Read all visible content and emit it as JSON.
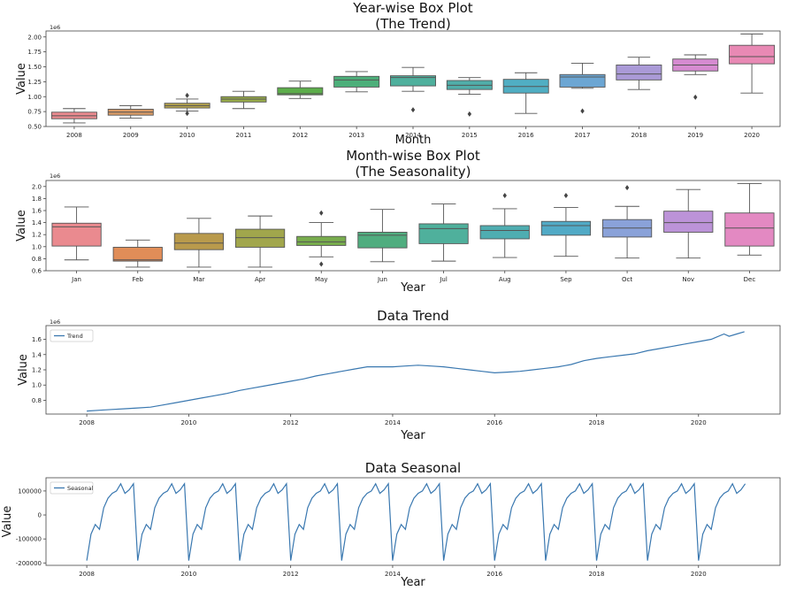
{
  "chart_data": [
    {
      "type": "box",
      "title": "Year-wise Box Plot",
      "subtitle": "(The Trend)",
      "xlabel": "Month",
      "ylabel": "Value",
      "offset_label": "1e6",
      "ylim": [
        0.5,
        2.1
      ],
      "yticks": [
        "0.50",
        "0.75",
        "1.00",
        "1.25",
        "1.50",
        "1.75",
        "2.00"
      ],
      "ytick_values": [
        0.5,
        0.75,
        1.0,
        1.25,
        1.5,
        1.75,
        2.0
      ],
      "categories": [
        "2008",
        "2009",
        "2010",
        "2011",
        "2012",
        "2013",
        "2014",
        "2015",
        "2016",
        "2017",
        "2018",
        "2019",
        "2020"
      ],
      "colors": [
        "#ea8a8f",
        "#d99b66",
        "#b6a54d",
        "#98ac49",
        "#5cad4a",
        "#4daf7a",
        "#4fb09d",
        "#50ada9",
        "#50aec3",
        "#6ca6d3",
        "#aa9ad7",
        "#d68bd1",
        "#e889b4"
      ],
      "boxes": [
        {
          "whislo": 0.56,
          "q1": 0.63,
          "med": 0.68,
          "q3": 0.74,
          "whishi": 0.8,
          "outliers": []
        },
        {
          "whislo": 0.64,
          "q1": 0.69,
          "med": 0.74,
          "q3": 0.79,
          "whishi": 0.85,
          "outliers": []
        },
        {
          "whislo": 0.76,
          "q1": 0.81,
          "med": 0.85,
          "q3": 0.89,
          "whishi": 0.96,
          "outliers": [
            0.72,
            1.02
          ]
        },
        {
          "whislo": 0.8,
          "q1": 0.91,
          "med": 0.96,
          "q3": 1.0,
          "whishi": 1.09,
          "outliers": []
        },
        {
          "whislo": 0.97,
          "q1": 1.03,
          "med": 1.05,
          "q3": 1.15,
          "whishi": 1.26,
          "outliers": []
        },
        {
          "whislo": 1.08,
          "q1": 1.16,
          "med": 1.28,
          "q3": 1.34,
          "whishi": 1.42,
          "outliers": []
        },
        {
          "whislo": 1.09,
          "q1": 1.18,
          "med": 1.32,
          "q3": 1.35,
          "whishi": 1.49,
          "outliers": [
            0.78
          ]
        },
        {
          "whislo": 1.04,
          "q1": 1.12,
          "med": 1.19,
          "q3": 1.27,
          "whishi": 1.32,
          "outliers": [
            0.71
          ]
        },
        {
          "whislo": 0.72,
          "q1": 1.06,
          "med": 1.17,
          "q3": 1.29,
          "whishi": 1.4,
          "outliers": []
        },
        {
          "whislo": 1.14,
          "q1": 1.16,
          "med": 1.33,
          "q3": 1.37,
          "whishi": 1.56,
          "outliers": [
            0.76
          ]
        },
        {
          "whislo": 1.12,
          "q1": 1.28,
          "med": 1.38,
          "q3": 1.53,
          "whishi": 1.66,
          "outliers": []
        },
        {
          "whislo": 1.37,
          "q1": 1.43,
          "med": 1.53,
          "q3": 1.63,
          "whishi": 1.7,
          "outliers": [
            0.99
          ]
        },
        {
          "whislo": 1.06,
          "q1": 1.55,
          "med": 1.67,
          "q3": 1.86,
          "whishi": 2.05,
          "outliers": []
        }
      ]
    },
    {
      "type": "box",
      "title": "Month-wise Box Plot",
      "subtitle": "(The Seasonality)",
      "xlabel": "Year",
      "ylabel": "Value",
      "offset_label": "1e6",
      "ylim": [
        0.6,
        2.1
      ],
      "yticks": [
        "0.6",
        "0.8",
        "1.0",
        "1.2",
        "1.4",
        "1.6",
        "1.8",
        "2.0"
      ],
      "ytick_values": [
        0.6,
        0.8,
        1.0,
        1.2,
        1.4,
        1.6,
        1.8,
        2.0
      ],
      "categories": [
        "Jan",
        "Feb",
        "Mar",
        "Apr",
        "May",
        "Jun",
        "Jul",
        "Aug",
        "Sep",
        "Oct",
        "Nov",
        "Dec"
      ],
      "colors": [
        "#ea8a8f",
        "#e08d58",
        "#b99a4c",
        "#a1a64c",
        "#78ad4d",
        "#50ad7f",
        "#4fb09c",
        "#4fadb1",
        "#51aac6",
        "#8aa2d9",
        "#bc93d8",
        "#e389c2"
      ],
      "boxes": [
        {
          "whislo": 0.78,
          "q1": 1.01,
          "med": 1.33,
          "q3": 1.39,
          "whishi": 1.66,
          "outliers": []
        },
        {
          "whislo": 0.66,
          "q1": 0.76,
          "med": 0.78,
          "q3": 0.99,
          "whishi": 1.11,
          "outliers": []
        },
        {
          "whislo": 0.66,
          "q1": 0.95,
          "med": 1.06,
          "q3": 1.22,
          "whishi": 1.47,
          "outliers": []
        },
        {
          "whislo": 0.66,
          "q1": 0.99,
          "med": 1.15,
          "q3": 1.29,
          "whishi": 1.51,
          "outliers": []
        },
        {
          "whislo": 0.83,
          "q1": 1.02,
          "med": 1.08,
          "q3": 1.17,
          "whishi": 1.4,
          "outliers": [
            0.71,
            1.56
          ]
        },
        {
          "whislo": 0.75,
          "q1": 0.98,
          "med": 1.19,
          "q3": 1.24,
          "whishi": 1.62,
          "outliers": []
        },
        {
          "whislo": 0.76,
          "q1": 1.05,
          "med": 1.3,
          "q3": 1.38,
          "whishi": 1.71,
          "outliers": []
        },
        {
          "whislo": 0.82,
          "q1": 1.13,
          "med": 1.27,
          "q3": 1.35,
          "whishi": 1.63,
          "outliers": [
            1.85
          ]
        },
        {
          "whislo": 0.84,
          "q1": 1.19,
          "med": 1.35,
          "q3": 1.42,
          "whishi": 1.65,
          "outliers": [
            1.85
          ]
        },
        {
          "whislo": 0.81,
          "q1": 1.16,
          "med": 1.31,
          "q3": 1.45,
          "whishi": 1.67,
          "outliers": [
            1.98
          ]
        },
        {
          "whislo": 0.81,
          "q1": 1.24,
          "med": 1.4,
          "q3": 1.59,
          "whishi": 1.95,
          "outliers": []
        },
        {
          "whislo": 0.86,
          "q1": 1.01,
          "med": 1.31,
          "q3": 1.56,
          "whishi": 2.05,
          "outliers": []
        }
      ]
    },
    {
      "type": "line",
      "title": "Data Trend",
      "xlabel": "Year",
      "ylabel": "Value",
      "offset_label": "1e6",
      "xlim": [
        2007.2,
        2021.6
      ],
      "ylim": [
        0.62,
        1.78
      ],
      "xticks": [
        "2008",
        "2010",
        "2012",
        "2014",
        "2016",
        "2018",
        "2020"
      ],
      "xtick_values": [
        2008,
        2010,
        2012,
        2014,
        2016,
        2018,
        2020
      ],
      "yticks": [
        "0.8",
        "1.0",
        "1.2",
        "1.4",
        "1.6"
      ],
      "ytick_values": [
        0.8,
        1.0,
        1.2,
        1.4,
        1.6
      ],
      "legend": "top-left",
      "color": "#3a78b0",
      "series": [
        {
          "name": "Trend",
          "x": [
            2008.0,
            2008.25,
            2008.5,
            2008.75,
            2009.0,
            2009.25,
            2009.5,
            2009.75,
            2010.0,
            2010.25,
            2010.5,
            2010.75,
            2011.0,
            2011.25,
            2011.5,
            2011.75,
            2012.0,
            2012.25,
            2012.5,
            2012.75,
            2013.0,
            2013.25,
            2013.5,
            2013.75,
            2014.0,
            2014.25,
            2014.5,
            2014.75,
            2015.0,
            2015.25,
            2015.5,
            2015.75,
            2016.0,
            2016.25,
            2016.5,
            2016.75,
            2017.0,
            2017.25,
            2017.5,
            2017.75,
            2018.0,
            2018.25,
            2018.5,
            2018.75,
            2019.0,
            2019.25,
            2019.5,
            2019.75,
            2020.0,
            2020.25,
            2020.5,
            2020.6,
            2020.75,
            2020.9
          ],
          "values": [
            0.66,
            0.67,
            0.68,
            0.69,
            0.7,
            0.71,
            0.74,
            0.77,
            0.8,
            0.83,
            0.86,
            0.89,
            0.93,
            0.96,
            0.99,
            1.02,
            1.05,
            1.08,
            1.12,
            1.15,
            1.18,
            1.21,
            1.24,
            1.24,
            1.24,
            1.25,
            1.26,
            1.25,
            1.24,
            1.22,
            1.2,
            1.18,
            1.16,
            1.17,
            1.18,
            1.2,
            1.22,
            1.24,
            1.27,
            1.32,
            1.35,
            1.37,
            1.39,
            1.41,
            1.45,
            1.48,
            1.51,
            1.54,
            1.57,
            1.6,
            1.67,
            1.64,
            1.67,
            1.7
          ]
        }
      ]
    },
    {
      "type": "line",
      "title": "Data Seasonal",
      "xlabel": "Year",
      "ylabel": "Value",
      "xlim": [
        2007.2,
        2021.6
      ],
      "ylim": [
        -210000,
        155000
      ],
      "xticks": [
        "2008",
        "2010",
        "2012",
        "2014",
        "2016",
        "2018",
        "2020"
      ],
      "xtick_values": [
        2008,
        2010,
        2012,
        2014,
        2016,
        2018,
        2020
      ],
      "yticks": [
        "100000",
        "0",
        "-100000",
        "-200000"
      ],
      "ytick_values": [
        100000,
        0,
        -100000,
        -200000
      ],
      "legend": "top-left",
      "color": "#3a78b0",
      "series": [
        {
          "name": "Seasonal",
          "start_year": 2008,
          "periods": 13,
          "months_shown": 12,
          "monthly_pattern": [
            -190000,
            -80000,
            -40000,
            -60000,
            30000,
            70000,
            90000,
            100000,
            130000,
            90000,
            105000,
            130000
          ]
        }
      ]
    }
  ]
}
